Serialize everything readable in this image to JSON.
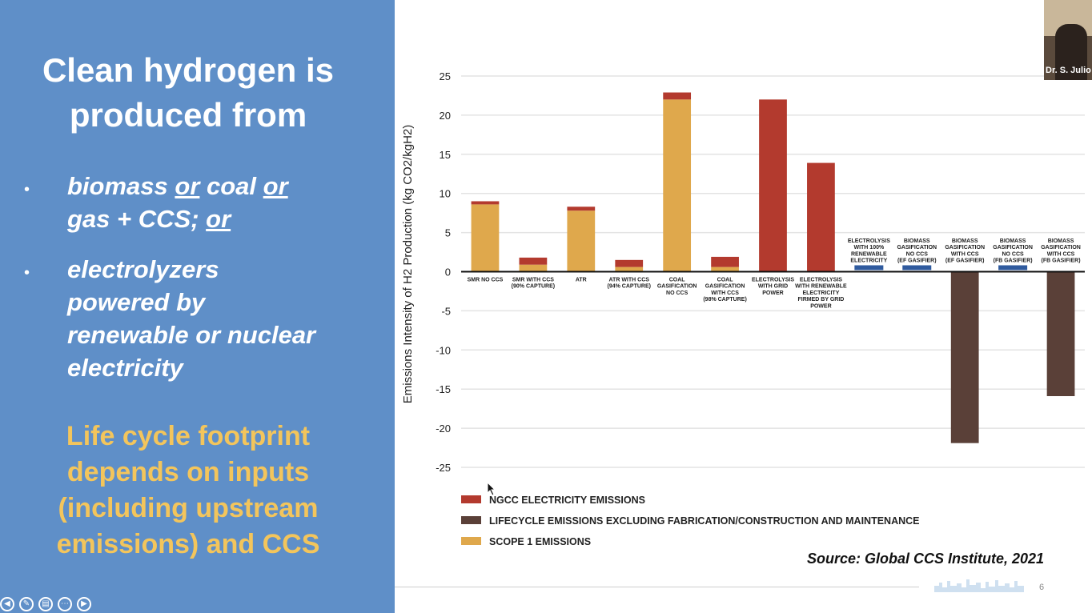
{
  "slide": {
    "title_lines": [
      "Clean hydrogen is",
      "produced from"
    ],
    "bullets": [
      {
        "marker": "•",
        "lines": [
          {
            "parts": [
              {
                "text": "biomass ",
                "u": false
              },
              {
                "text": "or",
                "u": true
              },
              {
                "text": " coal ",
                "u": false
              },
              {
                "text": "or",
                "u": true
              }
            ]
          },
          {
            "parts": [
              {
                "text": "gas + CCS",
                "u": false
              },
              {
                "text": "; ",
                "u": false
              },
              {
                "text": "or",
                "u": true
              }
            ]
          }
        ]
      },
      {
        "marker": "•",
        "lines": [
          {
            "parts": [
              {
                "text": "electrolyzers",
                "u": false
              }
            ]
          },
          {
            "parts": [
              {
                "text": "powered by",
                "u": false
              }
            ]
          },
          {
            "parts": [
              {
                "text": "renewable or nuclear",
                "u": false
              }
            ]
          },
          {
            "parts": [
              {
                "text": "electricity",
                "u": false
              }
            ]
          }
        ]
      }
    ],
    "note_lines": [
      "Life cycle footprint",
      "depends on inputs",
      "(including upstream",
      "emissions) and CCS"
    ],
    "source": "Source: Global CCS Institute, 2021",
    "page_number": "6"
  },
  "webcam": {
    "name": "Dr. S. Julio"
  },
  "colors": {
    "panel": "#5f8fc8",
    "note": "#f3c55c",
    "ngcc": "#b33a2e",
    "lifecycle": "#5a4038",
    "scope1": "#dfa84c",
    "blue_marker": "#2f5a9e"
  },
  "chart_data": {
    "type": "bar",
    "stacked": true,
    "title": "",
    "ylabel": "Emissions Intensity of H2 Production (kg CO2/kgH2)",
    "ylim": [
      -25,
      25
    ],
    "yticks": [
      25,
      20,
      15,
      10,
      5,
      0,
      -5,
      -10,
      -15,
      -20,
      -25
    ],
    "grid": true,
    "legend_position": "bottom-left",
    "categories": [
      [
        "SMR NO CCS"
      ],
      [
        "SMR WITH CCS",
        "(90% CAPTURE)"
      ],
      [
        "ATR"
      ],
      [
        "ATR WITH CCS",
        "(94% CAPTURE)"
      ],
      [
        "COAL",
        "GASIFICATION",
        "NO CCS"
      ],
      [
        "COAL",
        "GASIFICATION",
        "WITH CCS",
        "(98% CAPTURE)"
      ],
      [
        "ELECTROLYSIS",
        "WITH GRID",
        "POWER"
      ],
      [
        "ELECTROLYSIS",
        "WITH RENEWABLE",
        "ELECTRICITY",
        "FIRMED BY GRID",
        "POWER"
      ],
      [
        "ELECTROLYSIS",
        "WITH 100%",
        "RENEWABLE",
        "ELECTRICITY"
      ],
      [
        "BIOMASS",
        "GASIFICATION",
        "NO CCS",
        "(EF GASIFIER)"
      ],
      [
        "BIOMASS",
        "GASIFICATION",
        "WITH CCS",
        "(EF GASIFIER)"
      ],
      [
        "BIOMASS",
        "GASIFICATION",
        "NO CCS",
        "(FB GASIFIER)"
      ],
      [
        "BIOMASS",
        "GASIFICATION",
        "WITH CCS",
        "(FB GASIFIER)"
      ]
    ],
    "series": [
      {
        "name": "SCOPE 1 EMISSIONS",
        "color": "#dfa84c",
        "values": [
          8.6,
          0.9,
          7.8,
          0.6,
          22.0,
          0.6,
          0,
          0,
          0,
          0,
          0,
          0,
          0
        ]
      },
      {
        "name": "NGCC ELECTRICITY EMISSIONS",
        "color": "#b33a2e",
        "values": [
          0.4,
          0.9,
          0.5,
          0.9,
          0.9,
          1.3,
          22.0,
          13.9,
          0,
          0,
          0,
          0,
          0
        ]
      },
      {
        "name": "LIFECYCLE EMISSIONS EXCLUDING FABRICATION/CONSTRUCTION AND MAINTENANCE",
        "color": "#5a4038",
        "values": [
          0,
          0,
          0,
          0,
          0,
          0,
          0,
          0,
          0,
          0,
          -21.9,
          0,
          -15.9
        ]
      }
    ],
    "legend_order": [
      "NGCC ELECTRICITY EMISSIONS",
      "LIFECYCLE EMISSIONS EXCLUDING FABRICATION/CONSTRUCTION AND MAINTENANCE",
      "SCOPE 1 EMISSIONS"
    ]
  }
}
